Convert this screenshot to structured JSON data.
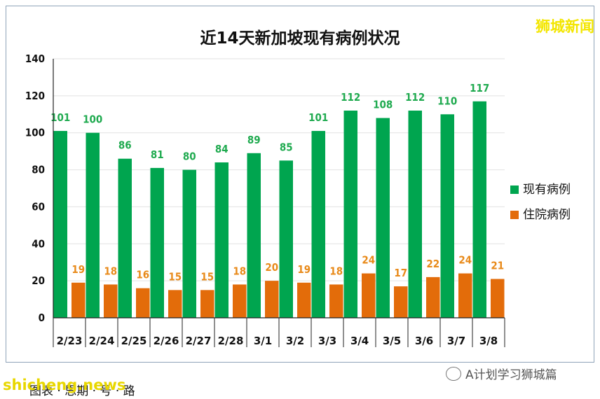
{
  "brand": "狮城新闻",
  "watermark": "shicheng.news",
  "wechat_account": "A计划学习狮城篇",
  "caption": "图表 · 思期 · 号 · 路",
  "chart_data": {
    "type": "bar",
    "title": "近14天新加坡现有病例状况",
    "categories": [
      "2/23",
      "2/24",
      "2/25",
      "2/26",
      "2/27",
      "2/28",
      "3/1",
      "3/2",
      "3/3",
      "3/4",
      "3/5",
      "3/6",
      "3/7",
      "3/8"
    ],
    "series": [
      {
        "name": "现有病例",
        "color": "#00a54f",
        "label_color": "#1faa4f",
        "values": [
          101,
          100,
          86,
          81,
          80,
          84,
          89,
          85,
          101,
          112,
          108,
          112,
          110,
          117
        ]
      },
      {
        "name": "住院病例",
        "color": "#e36c0a",
        "label_color": "#e88a1a",
        "values": [
          19,
          18,
          16,
          15,
          15,
          18,
          20,
          19,
          18,
          24,
          17,
          22,
          24,
          21
        ]
      }
    ],
    "ylim": [
      0,
      140
    ],
    "yticks": [
      0,
      20,
      40,
      60,
      80,
      100,
      120,
      140
    ],
    "grid": true,
    "legend": "right"
  }
}
